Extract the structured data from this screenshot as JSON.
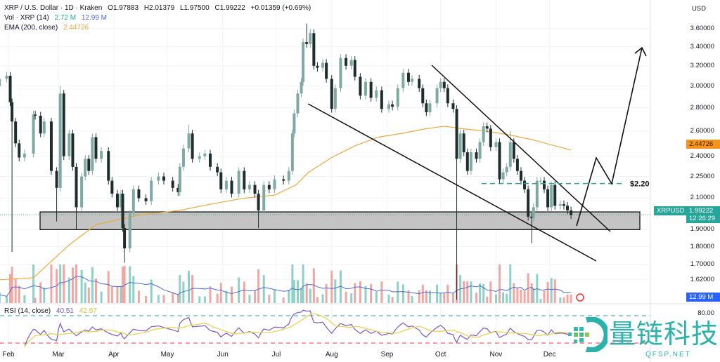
{
  "header": {
    "symbol": "XRP / U.S. Dollar · 1D · Kraken",
    "open": "O1.97883",
    "high": "H2.01379",
    "low": "L1.97500",
    "close": "C1.99222",
    "change": "+0.01359 (+0.69%)",
    "vol_label": "Vol · XRP (14)",
    "vol_value": "2.72 M",
    "vol_ma_value": "12.99 M",
    "ema_label": "EMA (200, close)",
    "ema_value": "2.44726",
    "rsi_label": "RSI (14, close)",
    "rsi_value": "40.51",
    "rsi_ma_value": "42.97"
  },
  "axis": {
    "currency": "USD",
    "price_ticks": [
      "3.60000",
      "3.40000",
      "3.20000",
      "3.00000",
      "2.80000",
      "2.60000",
      "2.40000",
      "2.25000",
      "2.10000",
      "1.90000",
      "1.80000",
      "1.70000",
      "1.62000"
    ],
    "rsi_tick": "80.00",
    "months": [
      "Feb",
      "Mar",
      "Apr",
      "May",
      "Jun",
      "Jul",
      "Aug",
      "Sep",
      "Oct",
      "Nov",
      "Dec"
    ]
  },
  "tags": {
    "symbol_tag": "XRPUSD",
    "last_price": "1.99222",
    "countdown": "12:26:29",
    "ema_tag": "2.44726",
    "vol_tag": "12.99 M"
  },
  "colors": {
    "up": "#7fa9a2",
    "down": "#1f2e2c",
    "ema": "#f0a73a",
    "rsi": "#7e57c2",
    "rsi_ma": "#e8d44d",
    "vol_up": "#8fd1c8",
    "vol_down": "#f2a6a3",
    "vol_ma": "#4a6fd6",
    "last_price": "#26a69a",
    "ema_tag": "#f7931a",
    "vol_tag": "#2962ff",
    "watermark": "#2ab3ad"
  },
  "watermark": {
    "name": "量链科技",
    "url": "QFSP.NET"
  },
  "chart_data": {
    "type": "candlestick",
    "title": "XRP / U.S. Dollar · 1D · Kraken",
    "yscale": "log",
    "ylim": [
      1.5,
      3.7
    ],
    "grid": true,
    "candles": [
      {
        "d": "Jan 27",
        "c": 3.07
      },
      {
        "d": "Jan 31",
        "c": 3.1
      },
      {
        "d": "Feb 2",
        "c": 2.85
      },
      {
        "d": "Feb 3",
        "c": 2.68,
        "l": 1.77
      },
      {
        "d": "Feb 5",
        "c": 2.5
      },
      {
        "d": "Feb 7",
        "c": 2.39
      },
      {
        "d": "Feb 10",
        "c": 2.42
      },
      {
        "d": "Feb 15",
        "c": 2.74
      },
      {
        "d": "Feb 16",
        "c": 2.73
      },
      {
        "d": "Feb 19",
        "c": 2.58
      },
      {
        "d": "Feb 21",
        "c": 2.68
      },
      {
        "d": "Feb 25",
        "c": 2.29
      },
      {
        "d": "Feb 28",
        "c": 2.17,
        "l": 1.95
      },
      {
        "d": "Mar 2",
        "c": 2.93,
        "h": 3.0
      },
      {
        "d": "Mar 4",
        "c": 2.4
      },
      {
        "d": "Mar 7",
        "c": 2.58
      },
      {
        "d": "Mar 9",
        "c": 2.32
      },
      {
        "d": "Mar 11",
        "c": 2.04,
        "l": 1.9
      },
      {
        "d": "Mar 14",
        "c": 2.25
      },
      {
        "d": "Mar 16",
        "c": 2.38
      },
      {
        "d": "Mar 18",
        "c": 2.29
      },
      {
        "d": "Mar 20",
        "c": 2.55
      },
      {
        "d": "Mar 22",
        "c": 2.38
      },
      {
        "d": "Mar 25",
        "c": 2.44
      },
      {
        "d": "Mar 29",
        "c": 2.22
      },
      {
        "d": "Mar 31",
        "c": 2.13
      },
      {
        "d": "Apr 3",
        "c": 2.04
      },
      {
        "d": "Apr 5",
        "c": 2.13
      },
      {
        "d": "Apr 6",
        "c": 1.91
      },
      {
        "d": "Apr 7",
        "c": 1.79,
        "l": 1.71
      },
      {
        "d": "Apr 10",
        "c": 2.0
      },
      {
        "d": "Apr 12",
        "c": 2.16
      },
      {
        "d": "Apr 15",
        "c": 2.1
      },
      {
        "d": "Apr 19",
        "c": 2.08
      },
      {
        "d": "Apr 22",
        "c": 2.22
      },
      {
        "d": "Apr 26",
        "c": 2.25
      },
      {
        "d": "Apr 29",
        "c": 2.22
      },
      {
        "d": "May 4",
        "c": 2.17
      },
      {
        "d": "May 7",
        "c": 2.14
      },
      {
        "d": "May 8",
        "c": 2.32
      },
      {
        "d": "May 10",
        "c": 2.46
      },
      {
        "d": "May 13",
        "c": 2.58,
        "h": 2.65
      },
      {
        "d": "May 15",
        "c": 2.38
      },
      {
        "d": "May 19",
        "c": 2.4
      },
      {
        "d": "May 22",
        "c": 2.42
      },
      {
        "d": "May 25",
        "c": 2.32
      },
      {
        "d": "May 29",
        "c": 2.28
      },
      {
        "d": "May 31",
        "c": 2.16
      },
      {
        "d": "Jun 3",
        "c": 2.22
      },
      {
        "d": "Jun 6",
        "c": 2.13
      },
      {
        "d": "Jun 10",
        "c": 2.29
      },
      {
        "d": "Jun 13",
        "c": 2.16
      },
      {
        "d": "Jun 16",
        "c": 2.19
      },
      {
        "d": "Jun 19",
        "c": 2.13
      },
      {
        "d": "Jun 21",
        "c": 2.02,
        "l": 1.91
      },
      {
        "d": "Jun 24",
        "c": 2.19
      },
      {
        "d": "Jun 27",
        "c": 2.16
      },
      {
        "d": "Jun 30",
        "c": 2.23
      },
      {
        "d": "Jul 5",
        "c": 2.22
      },
      {
        "d": "Jul 8",
        "c": 2.29
      },
      {
        "d": "Jul 10",
        "c": 2.58
      },
      {
        "d": "Jul 11",
        "c": 2.75
      },
      {
        "d": "Jul 13",
        "c": 2.93
      },
      {
        "d": "Jul 15",
        "c": 3.04
      },
      {
        "d": "Jul 16",
        "c": 3.45
      },
      {
        "d": "Jul 18",
        "c": 3.43,
        "h": 3.66
      },
      {
        "d": "Jul 20",
        "c": 3.55
      },
      {
        "d": "Jul 22",
        "c": 3.2
      },
      {
        "d": "Jul 24",
        "c": 3.18
      },
      {
        "d": "Jul 27",
        "c": 3.23
      },
      {
        "d": "Jul 29",
        "c": 3.07
      },
      {
        "d": "Aug 1",
        "c": 2.79
      },
      {
        "d": "Aug 3",
        "c": 2.98
      },
      {
        "d": "Aug 6",
        "c": 3.28
      },
      {
        "d": "Aug 9",
        "c": 3.2
      },
      {
        "d": "Aug 12",
        "c": 3.26
      },
      {
        "d": "Aug 14",
        "c": 3.09
      },
      {
        "d": "Aug 17",
        "c": 2.91
      },
      {
        "d": "Aug 20",
        "c": 3.04
      },
      {
        "d": "Aug 23",
        "c": 2.89
      },
      {
        "d": "Aug 26",
        "c": 2.96
      },
      {
        "d": "Aug 29",
        "c": 2.79
      },
      {
        "d": "Sep 2",
        "c": 2.83
      },
      {
        "d": "Sep 4",
        "c": 2.81
      },
      {
        "d": "Sep 7",
        "c": 2.98
      },
      {
        "d": "Sep 10",
        "c": 3.13
      },
      {
        "d": "Sep 13",
        "c": 3.04
      },
      {
        "d": "Sep 15",
        "c": 3.07
      },
      {
        "d": "Sep 19",
        "c": 2.98
      },
      {
        "d": "Sep 21",
        "c": 2.84
      },
      {
        "d": "Sep 23",
        "c": 2.76
      },
      {
        "d": "Sep 25",
        "c": 2.84
      },
      {
        "d": "Sep 29",
        "c": 2.98
      },
      {
        "d": "Oct 1",
        "c": 3.04
      },
      {
        "d": "Oct 3",
        "c": 2.98
      },
      {
        "d": "Oct 5",
        "c": 2.84
      },
      {
        "d": "Oct 8",
        "c": 2.79
      },
      {
        "d": "Oct 10",
        "c": 2.38,
        "l": 1.52
      },
      {
        "d": "Oct 12",
        "c": 2.58
      },
      {
        "d": "Oct 14",
        "c": 2.43
      },
      {
        "d": "Oct 16",
        "c": 2.29
      },
      {
        "d": "Oct 18",
        "c": 2.43
      },
      {
        "d": "Oct 21",
        "c": 2.38
      },
      {
        "d": "Oct 23",
        "c": 2.51
      },
      {
        "d": "Oct 25",
        "c": 2.64
      },
      {
        "d": "Oct 27",
        "c": 2.62
      },
      {
        "d": "Oct 29",
        "c": 2.47
      },
      {
        "d": "Nov 1",
        "c": 2.51
      },
      {
        "d": "Nov 3",
        "c": 2.23
      },
      {
        "d": "Nov 5",
        "c": 2.28
      },
      {
        "d": "Nov 7",
        "c": 2.32
      },
      {
        "d": "Nov 9",
        "c": 2.51,
        "h": 2.6
      },
      {
        "d": "Nov 11",
        "c": 2.38
      },
      {
        "d": "Nov 13",
        "c": 2.29
      },
      {
        "d": "Nov 15",
        "c": 2.22
      },
      {
        "d": "Nov 17",
        "c": 2.16
      },
      {
        "d": "Nov 19",
        "c": 1.98
      },
      {
        "d": "Nov 21",
        "c": 1.97,
        "l": 1.82
      },
      {
        "d": "Nov 22",
        "c": 2.04
      },
      {
        "d": "Nov 24",
        "c": 2.22
      },
      {
        "d": "Nov 26",
        "c": 2.22
      },
      {
        "d": "Nov 28",
        "c": 2.16
      },
      {
        "d": "Nov 30",
        "c": 2.04
      },
      {
        "d": "Dec 2",
        "c": 2.19
      },
      {
        "d": "Dec 4",
        "c": 2.05
      },
      {
        "d": "Dec 7",
        "c": 2.06
      },
      {
        "d": "Dec 9",
        "c": 2.05
      },
      {
        "d": "Dec 11",
        "c": 2.02
      },
      {
        "d": "Dec 13",
        "c": 1.99
      }
    ],
    "ema_200": [
      {
        "d": "Jan 27",
        "v": 1.62
      },
      {
        "d": "Feb 15",
        "v": 1.63
      },
      {
        "d": "Mar 7",
        "v": 1.81
      },
      {
        "d": "Mar 22",
        "v": 1.93
      },
      {
        "d": "Apr 15",
        "v": 1.99
      },
      {
        "d": "May 8",
        "v": 2.02
      },
      {
        "d": "May 25",
        "v": 2.06
      },
      {
        "d": "Jun 13",
        "v": 2.1
      },
      {
        "d": "Jun 30",
        "v": 2.12
      },
      {
        "d": "Jul 12",
        "v": 2.19
      },
      {
        "d": "Jul 19",
        "v": 2.28
      },
      {
        "d": "Aug 1",
        "v": 2.39
      },
      {
        "d": "Aug 14",
        "v": 2.48
      },
      {
        "d": "Aug 27",
        "v": 2.55
      },
      {
        "d": "Sep 9",
        "v": 2.58
      },
      {
        "d": "Sep 23",
        "v": 2.62
      },
      {
        "d": "Oct 3",
        "v": 2.64
      },
      {
        "d": "Oct 13",
        "v": 2.62
      },
      {
        "d": "Oct 26",
        "v": 2.6
      },
      {
        "d": "Nov 8",
        "v": 2.57
      },
      {
        "d": "Nov 21",
        "v": 2.53
      },
      {
        "d": "Dec 13",
        "v": 2.447
      }
    ],
    "support_zone": [
      1.9,
      2.01
    ],
    "target_level": {
      "value": 2.2,
      "label": "$2.20"
    },
    "rsi_levels": [
      80,
      20
    ]
  }
}
